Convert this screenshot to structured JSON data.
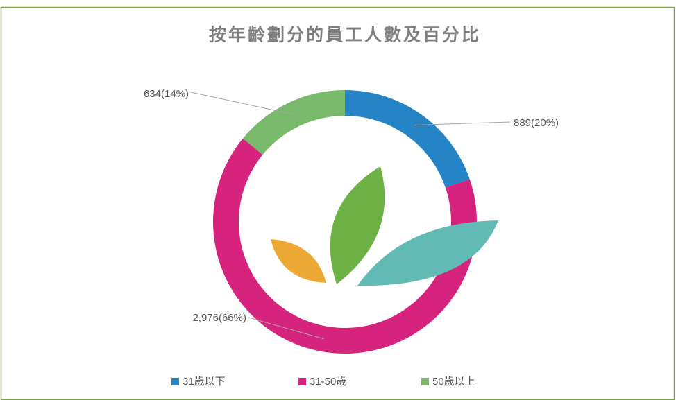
{
  "chart_data": {
    "type": "donut",
    "title": "按年齡劃分的員工人數及百分比",
    "categories": [
      "31歲以下",
      "31-50歲",
      "50歲以上"
    ],
    "values": [
      889,
      2976,
      634
    ],
    "value_labels": [
      "889(20%)",
      "2,976(66%)",
      "634(14%)"
    ],
    "colors": [
      "#2584c6",
      "#d6237e",
      "#79b96b"
    ],
    "legend": "bottom"
  }
}
